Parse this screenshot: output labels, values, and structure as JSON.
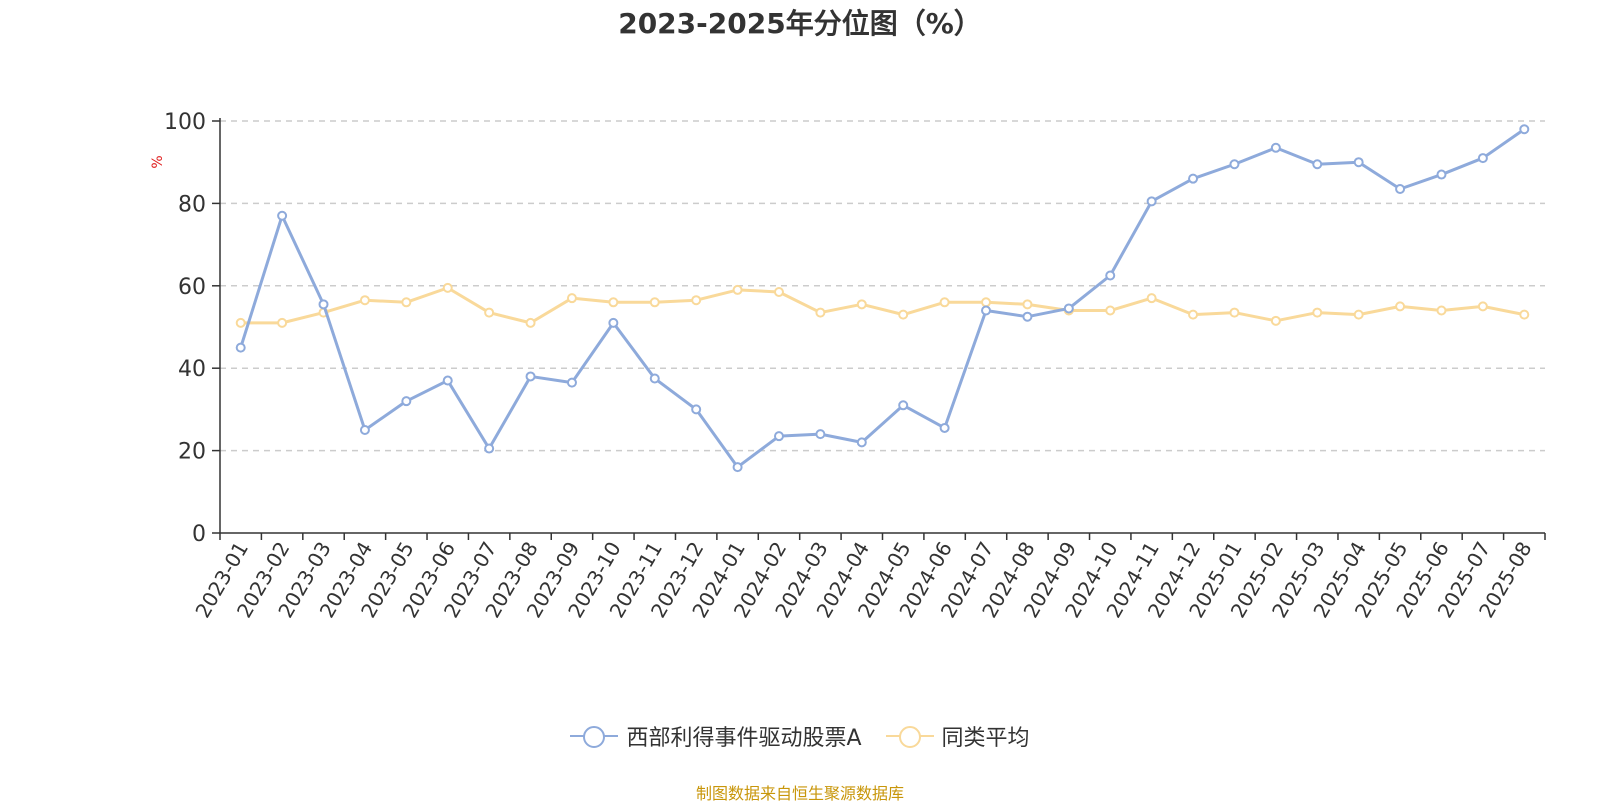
{
  "chart_data": {
    "type": "line",
    "title": "2023-2025年分位图（%）",
    "ylabel": "%",
    "ylim": [
      0,
      100
    ],
    "yticks": [
      "0",
      "20",
      "40",
      "60",
      "80",
      "100"
    ],
    "grid": true,
    "legend_position": "bottom",
    "categories": [
      "2023-01",
      "2023-02",
      "2023-03",
      "2023-04",
      "2023-05",
      "2023-06",
      "2023-07",
      "2023-08",
      "2023-09",
      "2023-10",
      "2023-11",
      "2023-12",
      "2024-01",
      "2024-02",
      "2024-03",
      "2024-04",
      "2024-05",
      "2024-06",
      "2024-07",
      "2024-08",
      "2024-09",
      "2024-10",
      "2024-11",
      "2024-12",
      "2025-01",
      "2025-02",
      "2025-03",
      "2025-04",
      "2025-05",
      "2025-06",
      "2025-07",
      "2025-08"
    ],
    "series": [
      {
        "name": "西部利得事件驱动股票A",
        "color": "#8eaadb",
        "values": [
          45,
          77,
          55.5,
          25,
          32,
          37,
          20.5,
          38,
          36.5,
          51,
          37.5,
          30,
          16,
          23.5,
          24,
          22,
          31,
          25.5,
          54,
          52.5,
          54.5,
          62.5,
          80.5,
          86,
          89.5,
          93.5,
          89.5,
          90,
          83.5,
          87,
          91,
          98
        ]
      },
      {
        "name": "同类平均",
        "color": "#f9d99a",
        "values": [
          51,
          51,
          53.5,
          56.5,
          56,
          59.5,
          53.5,
          51,
          57,
          56,
          56,
          56.5,
          59,
          58.5,
          53.5,
          55.5,
          53,
          56,
          56,
          55.5,
          54,
          54,
          57,
          53,
          53.5,
          51.5,
          53.5,
          53,
          55,
          54,
          55,
          53
        ]
      }
    ]
  },
  "footer": {
    "source": "制图数据来自恒生聚源数据库"
  }
}
